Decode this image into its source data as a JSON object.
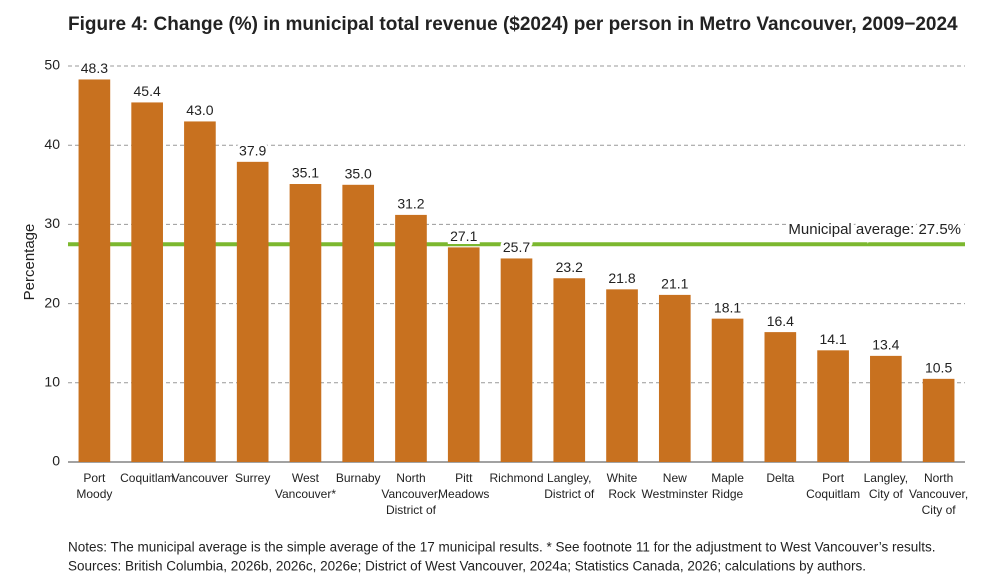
{
  "chart_data": {
    "type": "bar",
    "title": "Figure 4: Change (%) in municipal total revenue ($2024) per person in Metro Vancouver, 2009−2024",
    "y_label": "Percentage",
    "categories": [
      "Port\nMoody",
      "Coquitlam",
      "Vancouver",
      "Surrey",
      "West\nVancouver*",
      "Burnaby",
      "North\nVancouver,\nDistrict of",
      "Pitt\nMeadows",
      "Richmond",
      "Langley,\nDistrict of",
      "White\nRock",
      "New\nWestminster",
      "Maple\nRidge",
      "Delta",
      "Port\nCoquitlam",
      "Langley,\nCity of",
      "North\nVancouver,\nCity of"
    ],
    "values": [
      48.3,
      45.4,
      43.0,
      37.9,
      35.1,
      35.0,
      31.2,
      27.1,
      25.7,
      23.2,
      21.8,
      21.1,
      18.1,
      16.4,
      14.1,
      13.4,
      10.5
    ],
    "value_labels": [
      "48.3",
      "45.4",
      "43.0",
      "37.9",
      "35.1",
      "35.0",
      "31.2",
      "27.1",
      "25.7",
      "23.2",
      "21.8",
      "21.1",
      "18.1",
      "16.4",
      "14.1",
      "13.4",
      "10.5"
    ],
    "color": "#c8711f",
    "average": {
      "value": 27.5,
      "label": "Municipal average: 27.5%",
      "color": "#7cb82f"
    },
    "ylim": [
      0,
      50
    ],
    "yticks": [
      0,
      10,
      20,
      30,
      40,
      50
    ],
    "grid": true,
    "notes": [
      "Notes: The municipal average is the simple average of the 17 municipal results. * See footnote 11 for the adjustment to West Vancouver’s results.",
      "Sources: British Columbia, 2026b, 2026c, 2026e; District of West Vancouver, 2024a; Statistics Canada, 2026; calculations by authors."
    ]
  }
}
